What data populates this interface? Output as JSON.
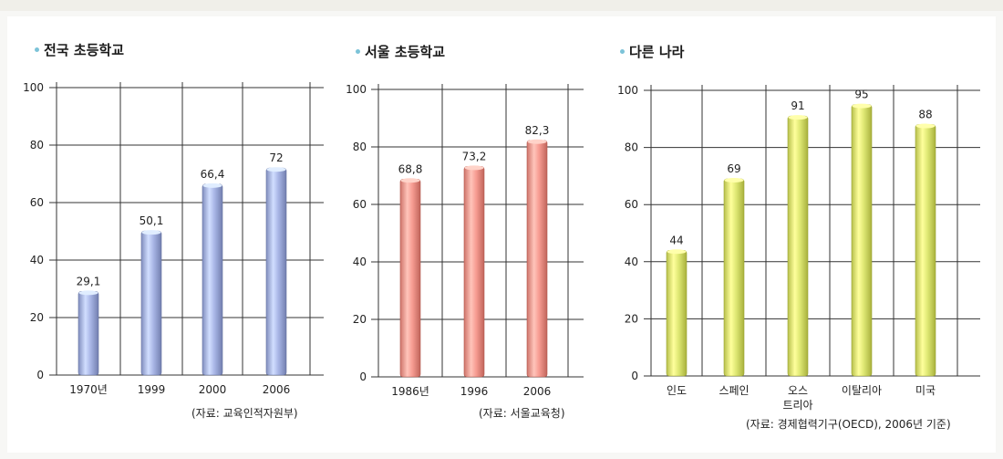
{
  "colors": {
    "national": "#a9b6e6",
    "seoul": "#f79c92",
    "other": "#dfe874"
  },
  "chart_data": [
    {
      "type": "bar",
      "title": "전국 초등학교",
      "categories": [
        "1970년",
        "1999",
        "2000",
        "2006"
      ],
      "values": [
        29.1,
        50.1,
        66.4,
        72
      ],
      "value_labels": [
        "29,1",
        "50,1",
        "66,4",
        "72"
      ],
      "yticks": [
        0,
        20,
        40,
        60,
        80,
        100
      ],
      "ylim": [
        0,
        100
      ],
      "grid": true,
      "source": "(자료: 교육인적자원부)"
    },
    {
      "type": "bar",
      "title": "서울 초등학교",
      "categories": [
        "1986년",
        "1996",
        "2006"
      ],
      "values": [
        68.8,
        73.2,
        82.3
      ],
      "value_labels": [
        "68,8",
        "73,2",
        "82,3"
      ],
      "yticks": [
        0,
        20,
        40,
        60,
        80,
        100
      ],
      "ylim": [
        0,
        100
      ],
      "grid": true,
      "source": "(자료: 서울교육청)"
    },
    {
      "type": "bar",
      "title": "다른 나라",
      "categories": [
        "인도",
        "스페인",
        "오스\n트리아",
        "이탈리아",
        "미국"
      ],
      "values": [
        44,
        69,
        91,
        95,
        88
      ],
      "value_labels": [
        "44",
        "69",
        "91",
        "95",
        "88"
      ],
      "yticks": [
        0,
        20,
        40,
        60,
        80,
        100
      ],
      "ylim": [
        0,
        100
      ],
      "grid": true,
      "source": "(자료: 경제협력기구(OECD), 2006년 기준)"
    }
  ]
}
